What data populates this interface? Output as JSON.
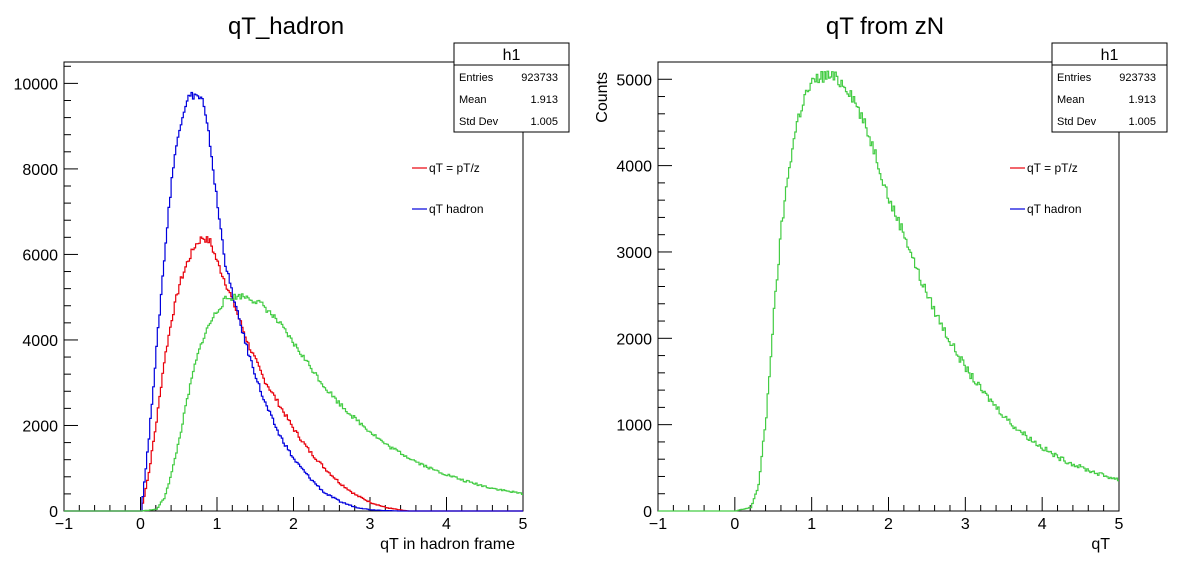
{
  "chart_data": [
    {
      "type": "line",
      "title": "qT_hadron",
      "xlabel": "qT in hadron frame",
      "ylabel": "",
      "xlim": [
        -1,
        5
      ],
      "ylim": [
        0,
        10500
      ],
      "x_ticks": [
        -1,
        0,
        1,
        2,
        3,
        4,
        5
      ],
      "y_ticks": [
        0,
        2000,
        4000,
        6000,
        8000,
        10000
      ],
      "stats": {
        "name": "h1",
        "entries_label": "Entries",
        "entries": "923733",
        "mean_label": "Mean",
        "mean": "1.913",
        "std_label": "Std Dev",
        "std": "1.005"
      },
      "legend": [
        {
          "label": "qT = pT/z",
          "color": "#e8000b"
        },
        {
          "label": "qT hadron",
          "color": "#0000dd"
        }
      ],
      "series": [
        {
          "color": "#e8000b",
          "x": [
            -1,
            0,
            0.1,
            0.2,
            0.3,
            0.4,
            0.5,
            0.6,
            0.7,
            0.8,
            0.9,
            1.0,
            1.2,
            1.4,
            1.6,
            1.8,
            2.0,
            2.2,
            2.4,
            2.6,
            2.8,
            3.0,
            3.2,
            3.4,
            3.5,
            5
          ],
          "y": [
            0,
            0,
            900,
            2100,
            3500,
            4500,
            5300,
            5800,
            6200,
            6400,
            6300,
            5800,
            4900,
            3900,
            3100,
            2500,
            1900,
            1400,
            1000,
            650,
            380,
            200,
            80,
            20,
            0,
            0
          ]
        },
        {
          "color": "#0000dd",
          "x": [
            -1,
            0,
            0.1,
            0.2,
            0.3,
            0.4,
            0.5,
            0.6,
            0.7,
            0.8,
            0.9,
            1.0,
            1.1,
            1.2,
            1.4,
            1.6,
            1.8,
            2.0,
            2.2,
            2.4,
            2.6,
            2.8,
            3.0,
            3.2,
            3.4,
            5
          ],
          "y": [
            0,
            0,
            1700,
            3800,
            5900,
            7800,
            9000,
            9650,
            9750,
            9600,
            8600,
            7100,
            5800,
            5000,
            3700,
            2600,
            1800,
            1200,
            780,
            420,
            220,
            90,
            30,
            10,
            0,
            0
          ]
        },
        {
          "color": "#44cc44",
          "x": [
            -1,
            0,
            0.2,
            0.3,
            0.4,
            0.5,
            0.6,
            0.7,
            0.8,
            0.9,
            1.0,
            1.1,
            1.2,
            1.3,
            1.4,
            1.5,
            1.6,
            1.8,
            2.0,
            2.2,
            2.4,
            2.6,
            2.8,
            3.0,
            3.2,
            3.4,
            3.6,
            3.8,
            4.0,
            4.2,
            4.4,
            4.6,
            4.8,
            5.0
          ],
          "y": [
            0,
            0,
            40,
            300,
            900,
            1700,
            2600,
            3400,
            4000,
            4400,
            4700,
            4950,
            5000,
            5030,
            5000,
            4900,
            4800,
            4400,
            3900,
            3400,
            2900,
            2500,
            2150,
            1850,
            1550,
            1350,
            1150,
            980,
            850,
            720,
            620,
            530,
            460,
            400
          ]
        }
      ]
    },
    {
      "type": "line",
      "title": "qT from zN",
      "xlabel": "qT",
      "ylabel": "Counts",
      "xlim": [
        -1,
        5
      ],
      "ylim": [
        0,
        5200
      ],
      "x_ticks": [
        -1,
        0,
        1,
        2,
        3,
        4,
        5
      ],
      "y_ticks": [
        0,
        1000,
        2000,
        3000,
        4000,
        5000
      ],
      "stats": {
        "name": "h1",
        "entries_label": "Entries",
        "entries": "923733",
        "mean_label": "Mean",
        "mean": "1.913",
        "std_label": "Std Dev",
        "std": "1.005"
      },
      "legend": [
        {
          "label": "qT = pT/z",
          "color": "#e8000b"
        },
        {
          "label": "qT hadron",
          "color": "#0000dd"
        }
      ],
      "series": [
        {
          "color": "#44cc44",
          "x": [
            -1,
            0,
            0.2,
            0.3,
            0.4,
            0.5,
            0.6,
            0.7,
            0.8,
            0.9,
            1.0,
            1.1,
            1.2,
            1.3,
            1.4,
            1.5,
            1.6,
            1.8,
            2.0,
            2.2,
            2.4,
            2.6,
            2.8,
            3.0,
            3.2,
            3.4,
            3.6,
            3.8,
            4.0,
            4.2,
            4.4,
            4.6,
            4.8,
            5.0
          ],
          "y": [
            0,
            0,
            40,
            300,
            1100,
            2300,
            3300,
            4000,
            4500,
            4800,
            4950,
            5030,
            5040,
            5010,
            4950,
            4850,
            4650,
            4200,
            3600,
            3200,
            2700,
            2300,
            1950,
            1650,
            1400,
            1200,
            1000,
            860,
            730,
            620,
            540,
            470,
            410,
            360
          ]
        }
      ]
    }
  ]
}
